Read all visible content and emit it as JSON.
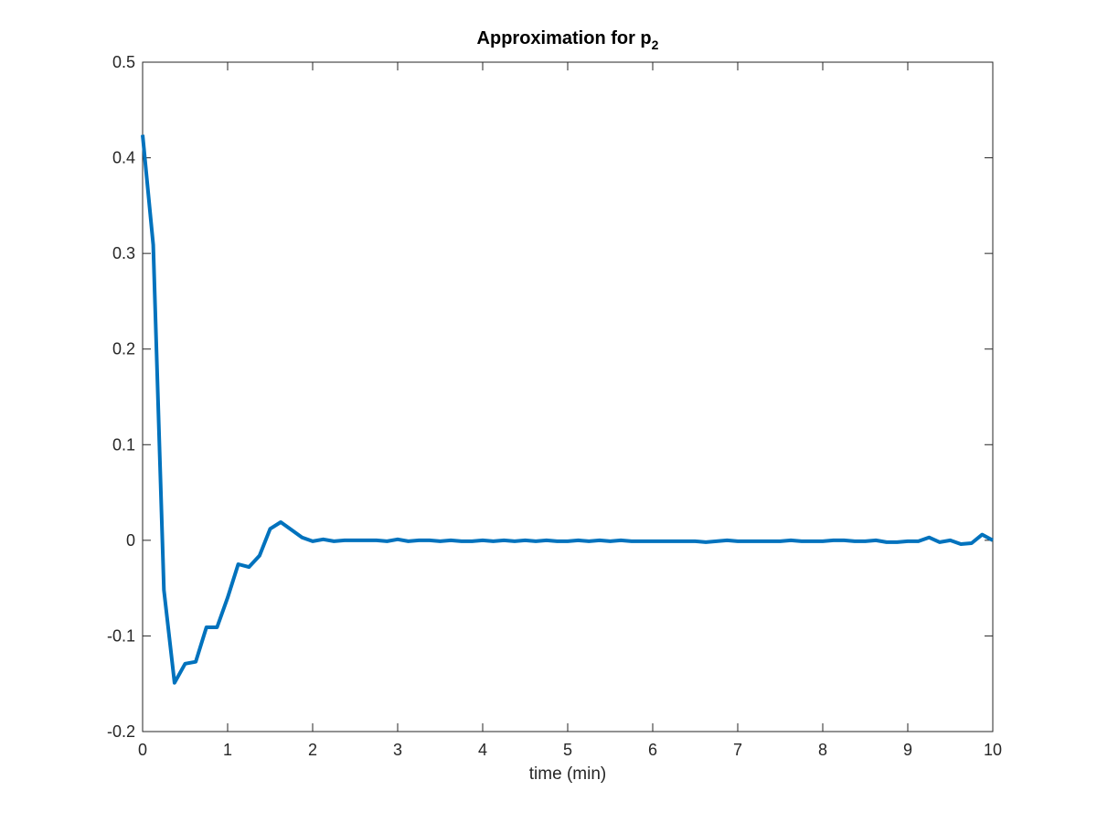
{
  "chart_data": {
    "type": "line",
    "title": "Approximation for p",
    "title_subscript": "2",
    "xlabel": "time (min)",
    "ylabel": "",
    "xlim": [
      0,
      10
    ],
    "ylim": [
      -0.2,
      0.5
    ],
    "xticks": [
      0,
      1,
      2,
      3,
      4,
      5,
      6,
      7,
      8,
      9,
      10
    ],
    "yticks": [
      -0.2,
      -0.1,
      0,
      0.1,
      0.2,
      0.3,
      0.4,
      0.5
    ],
    "xtick_labels": [
      "0",
      "1",
      "2",
      "3",
      "4",
      "5",
      "6",
      "7",
      "8",
      "9",
      "10"
    ],
    "ytick_labels": [
      "-0.2",
      "-0.1",
      "0",
      "0.1",
      "0.2",
      "0.3",
      "0.4",
      "0.5"
    ],
    "grid": false,
    "line_color": "#0072BD",
    "series": [
      {
        "x": [
          0,
          0.125,
          0.25,
          0.375,
          0.5,
          0.625,
          0.75,
          0.875,
          1.0,
          1.125,
          1.25,
          1.375,
          1.5,
          1.625,
          1.75,
          1.875,
          2.0,
          2.125,
          2.25,
          2.375,
          2.5,
          2.625,
          2.75,
          2.875,
          3.0,
          3.125,
          3.25,
          3.375,
          3.5,
          3.625,
          3.75,
          3.875,
          4.0,
          4.125,
          4.25,
          4.375,
          4.5,
          4.625,
          4.75,
          4.875,
          5.0,
          5.125,
          5.25,
          5.375,
          5.5,
          5.625,
          5.75,
          5.875,
          6.0,
          6.125,
          6.25,
          6.375,
          6.5,
          6.625,
          6.75,
          6.875,
          7.0,
          7.125,
          7.25,
          7.375,
          7.5,
          7.625,
          7.75,
          7.875,
          8.0,
          8.125,
          8.25,
          8.375,
          8.5,
          8.625,
          8.75,
          8.875,
          9.0,
          9.125,
          9.25,
          9.375,
          9.5,
          9.625,
          9.75,
          9.875,
          10.0
        ],
        "values": [
          0.424,
          0.309,
          -0.052,
          -0.149,
          -0.129,
          -0.127,
          -0.091,
          -0.091,
          -0.06,
          -0.025,
          -0.028,
          -0.016,
          0.012,
          0.019,
          0.011,
          0.003,
          -0.001,
          0.001,
          -0.001,
          0.0,
          0.0,
          0.0,
          0.0,
          -0.001,
          0.001,
          -0.001,
          0.0,
          0.0,
          -0.001,
          0.0,
          -0.001,
          -0.001,
          0.0,
          -0.001,
          0.0,
          -0.001,
          0.0,
          -0.001,
          0.0,
          -0.001,
          -0.001,
          0.0,
          -0.001,
          0.0,
          -0.001,
          0.0,
          -0.001,
          -0.001,
          -0.001,
          -0.001,
          -0.001,
          -0.001,
          -0.001,
          -0.002,
          -0.001,
          0.0,
          -0.001,
          -0.001,
          -0.001,
          -0.001,
          -0.001,
          0.0,
          -0.001,
          -0.001,
          -0.001,
          0.0,
          0.0,
          -0.001,
          -0.001,
          0.0,
          -0.002,
          -0.002,
          -0.001,
          -0.001,
          0.003,
          -0.002,
          0.0,
          -0.004,
          -0.003,
          0.006,
          0.0
        ]
      }
    ]
  }
}
